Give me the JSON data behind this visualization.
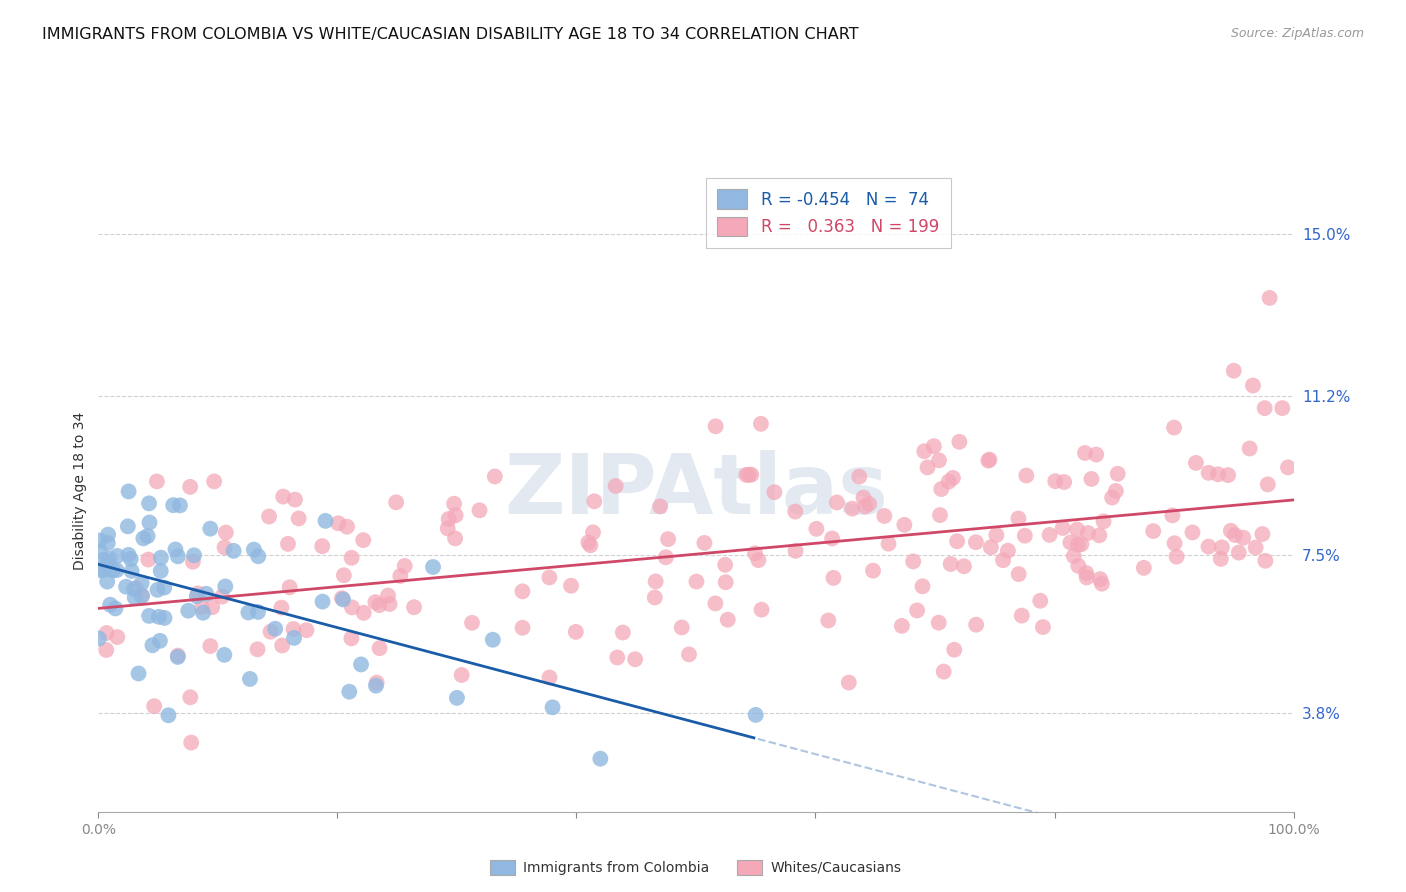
{
  "title": "IMMIGRANTS FROM COLOMBIA VS WHITE/CAUCASIAN DISABILITY AGE 18 TO 34 CORRELATION CHART",
  "source": "Source: ZipAtlas.com",
  "ylabel": "Disability Age 18 to 34",
  "y_tick_labels": [
    "3.8%",
    "7.5%",
    "11.2%",
    "15.0%"
  ],
  "y_tick_values": [
    3.8,
    7.5,
    11.2,
    15.0
  ],
  "ylim": [
    1.5,
    16.5
  ],
  "xlim": [
    0.0,
    100.0
  ],
  "legend_blue_R": "-0.454",
  "legend_blue_N": "74",
  "legend_pink_R": "0.363",
  "legend_pink_N": "199",
  "blue_color": "#90b8e0",
  "pink_color": "#f4a8b8",
  "blue_line_color": "#1a5ca8",
  "pink_line_color": "#d04868",
  "blue_label": "Immigrants from Colombia",
  "pink_label": "Whites/Caucasians",
  "watermark": "ZIPAtlas",
  "title_fontsize": 11.5,
  "axis_label_fontsize": 10,
  "tick_label_fontsize": 10,
  "legend_fontsize": 12,
  "source_fontsize": 9,
  "background_color": "#ffffff",
  "grid_color": "#cccccc"
}
